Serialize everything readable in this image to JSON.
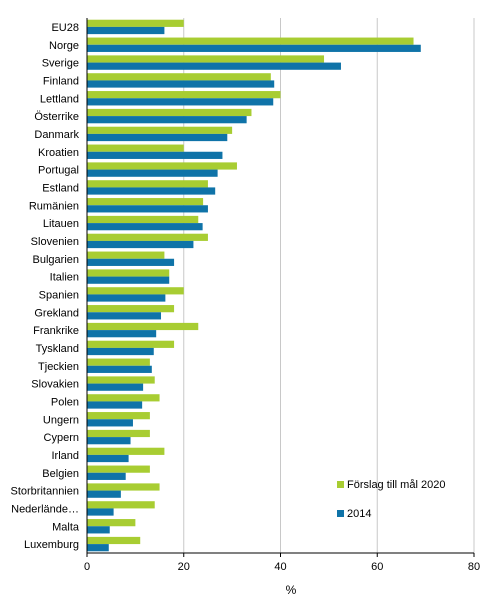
{
  "chart_data": {
    "type": "bar",
    "orientation": "horizontal",
    "categories": [
      "EU28",
      "Norge",
      "Sverige",
      "Finland",
      "Lettland",
      "Österrike",
      "Danmark",
      "Kroatien",
      "Portugal",
      "Estland",
      "Rumänien",
      "Litauen",
      "Slovenien",
      "Bulgarien",
      "Italien",
      "Spanien",
      "Grekland",
      "Frankrike",
      "Tyskland",
      "Tjeckien",
      "Slovakien",
      "Polen",
      "Ungern",
      "Cypern",
      "Irland",
      "Belgien",
      "Storbritannien",
      "Nederländerna",
      "Malta",
      "Luxemburg"
    ],
    "category_display": [
      "EU28",
      "Norge",
      "Sverige",
      "Finland",
      "Lettland",
      "Österrike",
      "Danmark",
      "Kroatien",
      "Portugal",
      "Estland",
      "Rumänien",
      "Litauen",
      "Slovenien",
      "Bulgarien",
      "Italien",
      "Spanien",
      "Grekland",
      "Frankrike",
      "Tyskland",
      "Tjeckien",
      "Slovakien",
      "Polen",
      "Ungern",
      "Cypern",
      "Irland",
      "Belgien",
      "Storbritannien",
      "Nederlände…",
      "Malta",
      "Luxemburg"
    ],
    "series": [
      {
        "name": "Förslag till mål 2020",
        "color": "#a8cd32",
        "values": [
          20,
          67.5,
          49,
          38,
          40,
          34,
          30,
          20,
          31,
          25,
          24,
          23,
          25,
          16,
          17,
          20,
          18,
          23,
          18,
          13,
          14,
          15,
          13,
          13,
          16,
          13,
          15,
          14,
          10,
          11
        ]
      },
      {
        "name": "2014",
        "color": "#0f73a8",
        "values": [
          16,
          69,
          52.5,
          38.7,
          38.5,
          33,
          29,
          28,
          27,
          26.5,
          25,
          23.9,
          22,
          18,
          17,
          16.2,
          15.3,
          14.3,
          13.8,
          13.4,
          11.6,
          11.4,
          9.5,
          9,
          8.6,
          8,
          7,
          5.5,
          4.7,
          4.5
        ]
      }
    ],
    "xlabel": "%",
    "xlim": [
      0,
      80
    ],
    "xticks": [
      "0",
      "20",
      "40",
      "60",
      "80"
    ],
    "grid": "vertical",
    "legend_position": "bottom-right"
  }
}
